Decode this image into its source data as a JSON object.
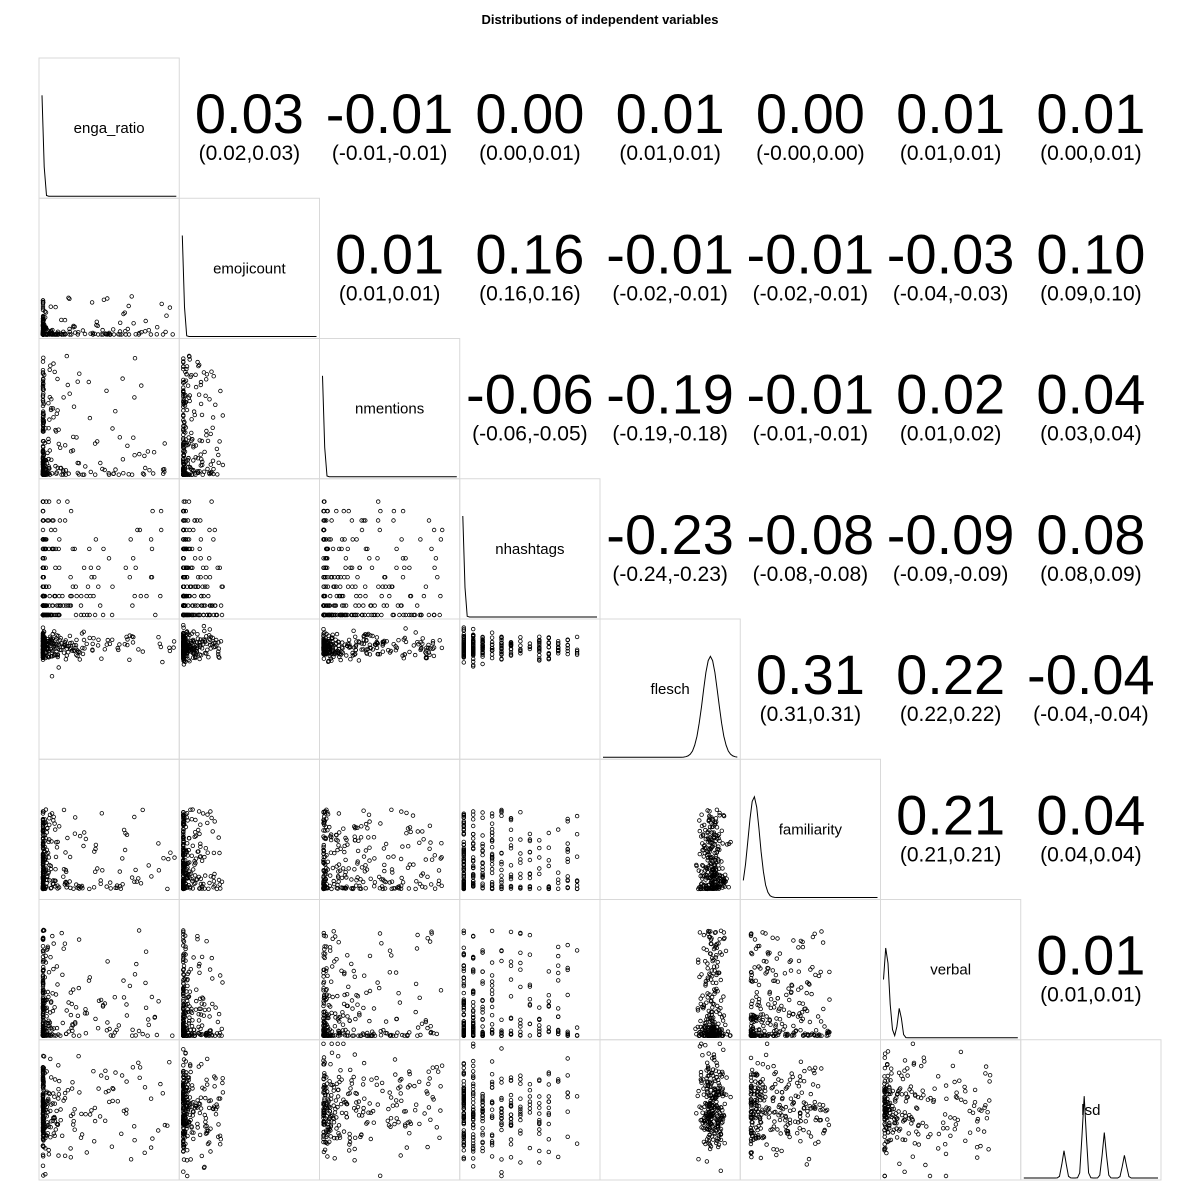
{
  "chart_data": {
    "type": "scatter",
    "title": "Distributions of independent variables",
    "variables": [
      "enga_ratio",
      "emojicount",
      "nmentions",
      "nhashtags",
      "flesch",
      "familiarity",
      "verbal",
      "lsd"
    ],
    "correlations": [
      {
        "row": 0,
        "col": 1,
        "r": "0.03",
        "ci": "(0.02,0.03)"
      },
      {
        "row": 0,
        "col": 2,
        "r": "-0.01",
        "ci": "(-0.01,-0.01)"
      },
      {
        "row": 0,
        "col": 3,
        "r": "0.00",
        "ci": "(0.00,0.01)"
      },
      {
        "row": 0,
        "col": 4,
        "r": "0.01",
        "ci": "(0.01,0.01)"
      },
      {
        "row": 0,
        "col": 5,
        "r": "0.00",
        "ci": "(-0.00,0.00)"
      },
      {
        "row": 0,
        "col": 6,
        "r": "0.01",
        "ci": "(0.01,0.01)"
      },
      {
        "row": 0,
        "col": 7,
        "r": "0.01",
        "ci": "(0.00,0.01)"
      },
      {
        "row": 1,
        "col": 2,
        "r": "0.01",
        "ci": "(0.01,0.01)"
      },
      {
        "row": 1,
        "col": 3,
        "r": "0.16",
        "ci": "(0.16,0.16)"
      },
      {
        "row": 1,
        "col": 4,
        "r": "-0.01",
        "ci": "(-0.02,-0.01)"
      },
      {
        "row": 1,
        "col": 5,
        "r": "-0.01",
        "ci": "(-0.02,-0.01)"
      },
      {
        "row": 1,
        "col": 6,
        "r": "-0.03",
        "ci": "(-0.04,-0.03)"
      },
      {
        "row": 1,
        "col": 7,
        "r": "0.10",
        "ci": "(0.09,0.10)"
      },
      {
        "row": 2,
        "col": 3,
        "r": "-0.06",
        "ci": "(-0.06,-0.05)"
      },
      {
        "row": 2,
        "col": 4,
        "r": "-0.19",
        "ci": "(-0.19,-0.18)"
      },
      {
        "row": 2,
        "col": 5,
        "r": "-0.01",
        "ci": "(-0.01,-0.01)"
      },
      {
        "row": 2,
        "col": 6,
        "r": "0.02",
        "ci": "(0.01,0.02)"
      },
      {
        "row": 2,
        "col": 7,
        "r": "0.04",
        "ci": "(0.03,0.04)"
      },
      {
        "row": 3,
        "col": 4,
        "r": "-0.23",
        "ci": "(-0.24,-0.23)"
      },
      {
        "row": 3,
        "col": 5,
        "r": "-0.08",
        "ci": "(-0.08,-0.08)"
      },
      {
        "row": 3,
        "col": 6,
        "r": "-0.09",
        "ci": "(-0.09,-0.09)"
      },
      {
        "row": 3,
        "col": 7,
        "r": "0.08",
        "ci": "(0.08,0.09)"
      },
      {
        "row": 4,
        "col": 5,
        "r": "0.31",
        "ci": "(0.31,0.31)"
      },
      {
        "row": 4,
        "col": 6,
        "r": "0.22",
        "ci": "(0.22,0.22)"
      },
      {
        "row": 4,
        "col": 7,
        "r": "-0.04",
        "ci": "(-0.04,-0.04)"
      },
      {
        "row": 5,
        "col": 6,
        "r": "0.21",
        "ci": "(0.21,0.21)"
      },
      {
        "row": 5,
        "col": 7,
        "r": "0.04",
        "ci": "(0.04,0.04)"
      },
      {
        "row": 6,
        "col": 7,
        "r": "0.01",
        "ci": "(0.01,0.01)"
      }
    ],
    "lower_panels": "scatter",
    "diagonal_panels": "density",
    "grid": false,
    "colors": {
      "points": "#000000",
      "border": "#d9d9d9",
      "background": "#ffffff"
    }
  }
}
